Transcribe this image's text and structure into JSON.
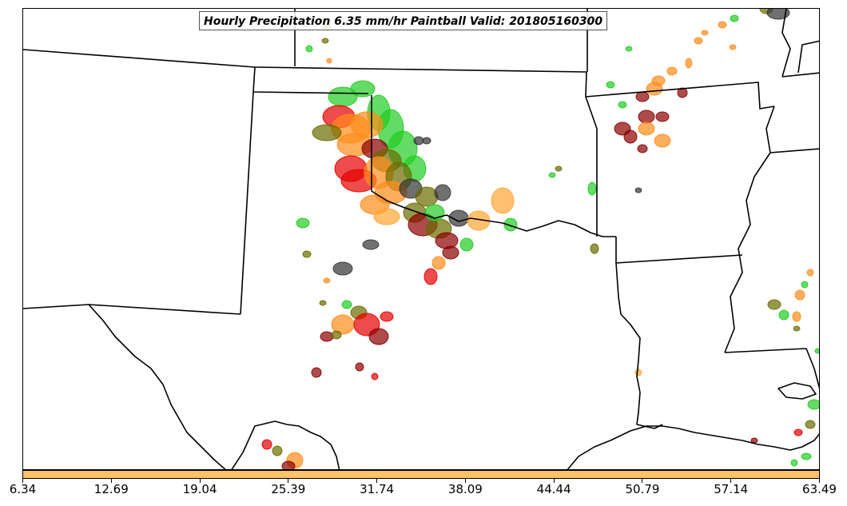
{
  "title": "Hourly Precipitation 6.35 mm/hr Paintball Valid: 201805160300",
  "colorbar": {
    "color": "#ffc266",
    "ticks": [
      "6.34",
      "12.69",
      "19.04",
      "25.39",
      "31.74",
      "38.09",
      "44.44",
      "50.79",
      "57.14",
      "63.49"
    ]
  },
  "palette": {
    "green": "#22cc22",
    "orange": "#ff8c1a",
    "light_orange": "#ffa533",
    "red": "#e60000",
    "dark_red": "#8b0000",
    "olive": "#6b6b00",
    "dark_gray": "#333333"
  }
}
